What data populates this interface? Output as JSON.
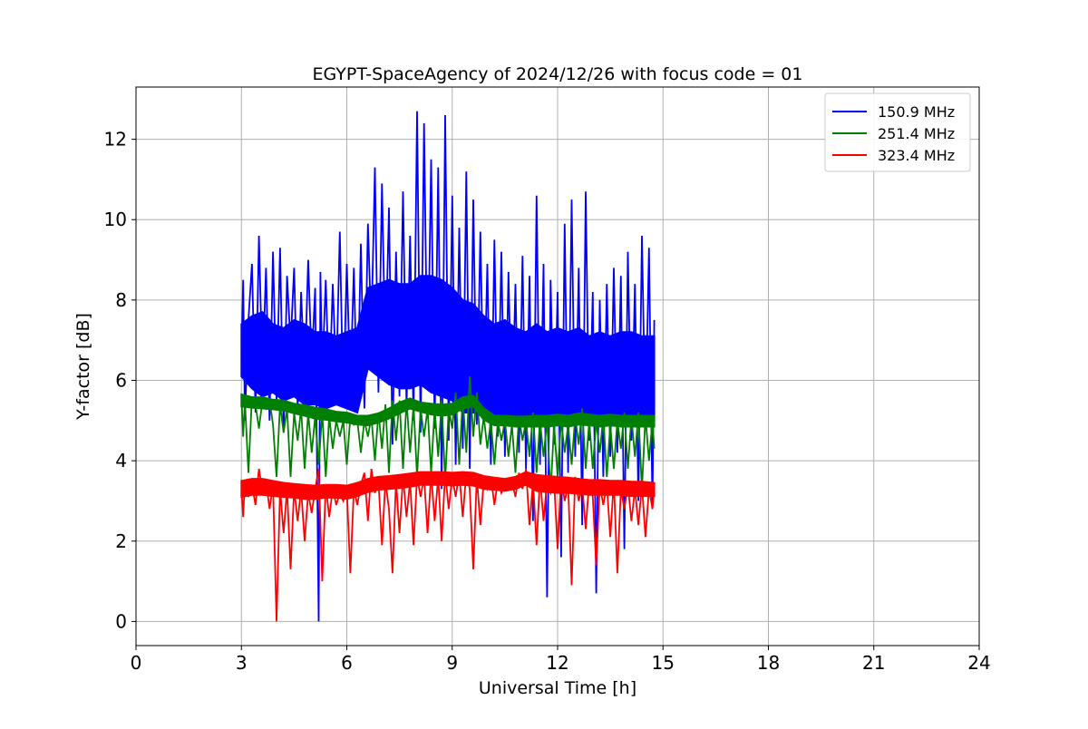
{
  "chart_data": {
    "type": "line",
    "title": "EGYPT-SpaceAgency of 2024/12/26 with focus code = 01",
    "xlabel": "Universal Time [h]",
    "ylabel": "Y-factor [dB]",
    "xlim": [
      0,
      24
    ],
    "ylim": [
      -0.6,
      13.3
    ],
    "xticks": [
      0,
      3,
      6,
      9,
      12,
      15,
      18,
      21,
      24
    ],
    "yticks": [
      0,
      2,
      4,
      6,
      8,
      10,
      12
    ],
    "grid": true,
    "legend_position": "top-right",
    "series": [
      {
        "name": "150.9 MHz",
        "color": "#0000ff",
        "x": [
          3.0,
          3.05,
          3.1,
          3.2,
          3.3,
          3.4,
          3.5,
          3.6,
          3.7,
          3.8,
          3.9,
          4.0,
          4.1,
          4.2,
          4.3,
          4.4,
          4.5,
          4.6,
          4.7,
          4.8,
          4.9,
          5.0,
          5.1,
          5.2,
          5.25,
          5.3,
          5.4,
          5.5,
          5.6,
          5.7,
          5.8,
          5.9,
          6.0,
          6.1,
          6.2,
          6.3,
          6.4,
          6.5,
          6.6,
          6.7,
          6.8,
          6.9,
          7.0,
          7.1,
          7.2,
          7.3,
          7.4,
          7.5,
          7.6,
          7.7,
          7.8,
          7.9,
          8.0,
          8.1,
          8.2,
          8.3,
          8.4,
          8.5,
          8.6,
          8.7,
          8.8,
          8.9,
          9.0,
          9.1,
          9.2,
          9.3,
          9.4,
          9.5,
          9.6,
          9.7,
          9.8,
          9.9,
          10.0,
          10.1,
          10.2,
          10.3,
          10.4,
          10.5,
          10.6,
          10.7,
          10.8,
          10.9,
          11.0,
          11.1,
          11.2,
          11.3,
          11.4,
          11.5,
          11.6,
          11.7,
          11.8,
          11.9,
          12.0,
          12.1,
          12.2,
          12.3,
          12.4,
          12.5,
          12.6,
          12.7,
          12.8,
          12.9,
          13.0,
          13.1,
          13.2,
          13.3,
          13.4,
          13.5,
          13.6,
          13.7,
          13.8,
          13.9,
          14.0,
          14.1,
          14.2,
          14.3,
          14.4,
          14.5,
          14.6,
          14.7,
          14.75
        ],
        "y": [
          6.6,
          8.5,
          5.0,
          7.5,
          8.9,
          5.2,
          9.6,
          6.1,
          8.8,
          5.0,
          9.2,
          5.5,
          9.3,
          4.7,
          8.6,
          6.9,
          8.8,
          5.3,
          8.2,
          6.0,
          9.0,
          6.4,
          8.3,
          0.0,
          8.7,
          6.1,
          8.5,
          5.6,
          8.4,
          6.0,
          9.7,
          5.4,
          8.9,
          5.8,
          8.8,
          5.2,
          9.4,
          5.3,
          9.9,
          7.2,
          11.3,
          5.7,
          10.9,
          6.5,
          10.3,
          4.4,
          9.2,
          5.6,
          10.7,
          5.3,
          9.6,
          5.0,
          12.7,
          4.7,
          12.4,
          5.8,
          11.5,
          4.8,
          11.3,
          3.3,
          12.6,
          4.5,
          10.6,
          3.9,
          9.8,
          4.3,
          11.2,
          3.8,
          10.5,
          4.9,
          9.7,
          5.1,
          8.9,
          3.9,
          9.5,
          4.6,
          9.2,
          4.1,
          8.7,
          4.8,
          8.4,
          4.2,
          9.1,
          3.8,
          8.6,
          2.5,
          10.6,
          3.9,
          8.9,
          0.6,
          8.5,
          4.4,
          8.2,
          1.6,
          9.9,
          3.7,
          10.5,
          4.1,
          8.8,
          2.4,
          10.7,
          4.5,
          8.2,
          0.7,
          8.0,
          3.6,
          8.4,
          4.1,
          8.8,
          4.2,
          8.6,
          1.8,
          9.2,
          4.5,
          8.4,
          3.0,
          9.6,
          4.8,
          9.3,
          2.8,
          7.5
        ],
        "envelope": {
          "x": [
            3.0,
            3.3,
            3.6,
            3.9,
            4.2,
            4.5,
            4.8,
            5.1,
            5.4,
            5.7,
            6.0,
            6.3,
            6.6,
            6.9,
            7.2,
            7.5,
            7.8,
            8.1,
            8.4,
            8.7,
            9.0,
            9.3,
            9.6,
            9.9,
            10.2,
            10.5,
            10.8,
            11.1,
            11.4,
            11.7,
            12.0,
            12.3,
            12.6,
            12.9,
            13.2,
            13.5,
            13.8,
            14.1,
            14.4,
            14.75
          ],
          "upper": [
            7.4,
            7.6,
            7.7,
            7.4,
            7.3,
            7.5,
            7.4,
            7.2,
            7.2,
            7.1,
            7.2,
            7.3,
            8.3,
            8.4,
            8.5,
            8.4,
            8.4,
            8.6,
            8.6,
            8.5,
            8.3,
            8.0,
            7.9,
            7.6,
            7.4,
            7.5,
            7.3,
            7.2,
            7.4,
            7.2,
            7.3,
            7.2,
            7.3,
            7.1,
            7.2,
            7.1,
            7.2,
            7.2,
            7.1,
            7.1
          ],
          "lower": [
            6.1,
            5.8,
            5.6,
            5.7,
            5.5,
            5.6,
            5.4,
            5.4,
            5.3,
            5.4,
            5.3,
            5.2,
            6.3,
            6.1,
            5.9,
            5.8,
            5.8,
            5.9,
            5.7,
            5.6,
            5.5,
            5.2,
            5.2,
            5.1,
            5.1,
            5.1,
            5.1,
            5.0,
            5.1,
            5.0,
            5.1,
            5.1,
            5.0,
            5.0,
            5.1,
            5.1,
            5.0,
            5.1,
            5.0,
            5.1
          ]
        }
      },
      {
        "name": "251.4 MHz",
        "color": "#008000",
        "x": [
          3.0,
          3.05,
          3.1,
          3.2,
          3.3,
          3.4,
          3.5,
          3.6,
          3.7,
          3.8,
          3.9,
          4.0,
          4.1,
          4.2,
          4.3,
          4.4,
          4.5,
          4.6,
          4.7,
          4.8,
          4.9,
          5.0,
          5.1,
          5.2,
          5.3,
          5.4,
          5.5,
          5.6,
          5.7,
          5.8,
          5.9,
          6.0,
          6.1,
          6.2,
          6.3,
          6.4,
          6.5,
          6.6,
          6.7,
          6.8,
          6.9,
          7.0,
          7.1,
          7.2,
          7.3,
          7.4,
          7.5,
          7.6,
          7.7,
          7.8,
          7.9,
          8.0,
          8.1,
          8.2,
          8.3,
          8.4,
          8.5,
          8.6,
          8.7,
          8.8,
          8.9,
          9.0,
          9.1,
          9.2,
          9.3,
          9.4,
          9.5,
          9.6,
          9.7,
          9.8,
          9.9,
          10.0,
          10.1,
          10.2,
          10.3,
          10.4,
          10.5,
          10.6,
          10.7,
          10.8,
          10.9,
          11.0,
          11.1,
          11.2,
          11.3,
          11.4,
          11.5,
          11.6,
          11.7,
          11.8,
          11.9,
          12.0,
          12.1,
          12.2,
          12.3,
          12.4,
          12.5,
          12.6,
          12.7,
          12.8,
          12.9,
          13.0,
          13.1,
          13.2,
          13.3,
          13.4,
          13.5,
          13.6,
          13.7,
          13.8,
          13.9,
          14.0,
          14.1,
          14.2,
          14.3,
          14.4,
          14.5,
          14.6,
          14.7,
          14.75
        ],
        "y": [
          5.6,
          4.6,
          5.5,
          3.7,
          5.6,
          5.4,
          4.8,
          5.5,
          5.3,
          5.5,
          4.9,
          3.6,
          5.4,
          4.7,
          5.3,
          3.6,
          5.2,
          4.5,
          5.3,
          3.8,
          5.2,
          4.2,
          5.1,
          3.9,
          5.2,
          3.6,
          5.1,
          4.3,
          5.0,
          4.6,
          5.0,
          3.9,
          5.1,
          4.9,
          5.0,
          4.2,
          5.0,
          4.6,
          5.1,
          4.0,
          5.2,
          4.3,
          5.4,
          3.7,
          5.5,
          4.5,
          5.5,
          3.8,
          5.5,
          4.2,
          5.4,
          3.6,
          5.3,
          4.6,
          5.3,
          3.7,
          5.3,
          4.1,
          5.5,
          3.5,
          5.3,
          4.8,
          5.7,
          3.9,
          5.6,
          4.2,
          6.1,
          4.6,
          5.7,
          4.4,
          5.1,
          4.3,
          5.0,
          3.9,
          5.0,
          4.5,
          5.0,
          4.1,
          4.9,
          3.7,
          5.1,
          4.5,
          5.0,
          4.1,
          5.2,
          3.7,
          5.0,
          4.1,
          5.0,
          3.2,
          4.9,
          3.6,
          5.0,
          4.2,
          4.9,
          3.9,
          5.1,
          4.4,
          5.3,
          3.8,
          5.0,
          3.8,
          5.0,
          4.2,
          5.1,
          3.6,
          4.9,
          3.8,
          5.0,
          4.3,
          5.2,
          3.8,
          5.1,
          4.1,
          5.2,
          3.3,
          5.1,
          4.0,
          5.0,
          4.3
        ],
        "envelope": {
          "x": [
            3.0,
            3.3,
            3.6,
            3.9,
            4.2,
            4.5,
            4.8,
            5.1,
            5.4,
            5.7,
            6.0,
            6.3,
            6.6,
            6.9,
            7.2,
            7.5,
            7.8,
            8.1,
            8.4,
            8.7,
            9.0,
            9.3,
            9.6,
            9.9,
            10.2,
            10.5,
            10.8,
            11.1,
            11.4,
            11.7,
            12.0,
            12.3,
            12.6,
            12.9,
            13.2,
            13.5,
            13.8,
            14.1,
            14.4,
            14.75
          ],
          "upper": [
            5.65,
            5.58,
            5.58,
            5.52,
            5.5,
            5.42,
            5.38,
            5.32,
            5.28,
            5.22,
            5.2,
            5.12,
            5.12,
            5.18,
            5.3,
            5.45,
            5.55,
            5.45,
            5.42,
            5.4,
            5.42,
            5.58,
            5.62,
            5.3,
            5.12,
            5.12,
            5.1,
            5.1,
            5.12,
            5.12,
            5.15,
            5.12,
            5.18,
            5.15,
            5.12,
            5.15,
            5.12,
            5.12,
            5.12,
            5.12
          ],
          "lower": [
            5.35,
            5.32,
            5.3,
            5.28,
            5.25,
            5.18,
            5.12,
            5.05,
            5.02,
            4.98,
            4.95,
            4.9,
            4.88,
            4.95,
            5.05,
            5.18,
            5.3,
            5.22,
            5.15,
            5.12,
            5.15,
            5.3,
            5.35,
            5.02,
            4.88,
            4.88,
            4.85,
            4.85,
            4.85,
            4.85,
            4.88,
            4.85,
            4.9,
            4.88,
            4.85,
            4.88,
            4.85,
            4.85,
            4.85,
            4.85
          ]
        }
      },
      {
        "name": "323.4 MHz",
        "color": "#ff0000",
        "x": [
          3.0,
          3.05,
          3.1,
          3.2,
          3.3,
          3.4,
          3.5,
          3.6,
          3.7,
          3.8,
          3.9,
          4.0,
          4.1,
          4.2,
          4.3,
          4.4,
          4.5,
          4.6,
          4.7,
          4.8,
          4.9,
          5.0,
          5.1,
          5.2,
          5.3,
          5.4,
          5.5,
          5.6,
          5.7,
          5.8,
          5.9,
          6.0,
          6.1,
          6.2,
          6.3,
          6.4,
          6.5,
          6.6,
          6.7,
          6.8,
          6.9,
          7.0,
          7.1,
          7.2,
          7.3,
          7.4,
          7.5,
          7.6,
          7.7,
          7.8,
          7.9,
          8.0,
          8.1,
          8.2,
          8.3,
          8.4,
          8.5,
          8.6,
          8.7,
          8.8,
          8.9,
          9.0,
          9.1,
          9.2,
          9.3,
          9.4,
          9.5,
          9.6,
          9.7,
          9.8,
          9.9,
          10.0,
          10.1,
          10.2,
          10.3,
          10.4,
          10.5,
          10.6,
          10.7,
          10.8,
          10.9,
          11.0,
          11.1,
          11.2,
          11.3,
          11.4,
          11.5,
          11.6,
          11.7,
          11.8,
          11.9,
          12.0,
          12.1,
          12.2,
          12.3,
          12.4,
          12.5,
          12.6,
          12.7,
          12.8,
          12.9,
          13.0,
          13.1,
          13.2,
          13.3,
          13.4,
          13.5,
          13.6,
          13.7,
          13.8,
          13.9,
          14.0,
          14.1,
          14.2,
          14.3,
          14.4,
          14.5,
          14.6,
          14.7,
          14.75
        ],
        "y": [
          3.3,
          2.6,
          3.5,
          3.1,
          3.4,
          2.9,
          3.8,
          3.2,
          3.5,
          2.8,
          3.4,
          0.0,
          3.3,
          2.2,
          3.3,
          1.3,
          3.3,
          2.5,
          3.3,
          2.0,
          3.2,
          2.7,
          3.3,
          3.8,
          1.0,
          3.4,
          2.6,
          3.3,
          2.9,
          3.2,
          3.0,
          3.3,
          1.2,
          3.3,
          2.9,
          3.4,
          3.7,
          2.5,
          3.8,
          3.2,
          3.5,
          1.9,
          3.5,
          2.8,
          1.2,
          3.5,
          2.2,
          3.6,
          2.6,
          3.5,
          1.9,
          3.6,
          3.1,
          3.6,
          2.2,
          3.7,
          2.5,
          3.6,
          2.0,
          3.7,
          2.8,
          3.6,
          3.1,
          3.7,
          2.6,
          3.7,
          3.3,
          1.3,
          3.6,
          2.4,
          3.5,
          3.3,
          3.6,
          2.9,
          3.5,
          3.2,
          3.4,
          3.3,
          3.5,
          3.1,
          3.7,
          3.3,
          3.8,
          2.4,
          3.5,
          1.9,
          3.6,
          2.5,
          3.5,
          3.2,
          3.5,
          1.8,
          3.6,
          3.0,
          3.4,
          0.9,
          3.6,
          3.0,
          3.4,
          2.3,
          3.5,
          3.1,
          1.4,
          3.4,
          2.9,
          3.4,
          2.1,
          3.5,
          1.2,
          3.3,
          2.8,
          3.4,
          2.5,
          3.3,
          2.4,
          3.4,
          2.1,
          3.3,
          2.8,
          3.3
        ],
        "envelope": {
          "x": [
            3.0,
            3.3,
            3.6,
            3.9,
            4.2,
            4.5,
            4.8,
            5.1,
            5.4,
            5.7,
            6.0,
            6.3,
            6.6,
            6.9,
            7.2,
            7.5,
            7.8,
            8.1,
            8.4,
            8.7,
            9.0,
            9.3,
            9.6,
            9.9,
            10.2,
            10.5,
            10.8,
            11.1,
            11.4,
            11.7,
            12.0,
            12.3,
            12.6,
            12.9,
            13.2,
            13.5,
            13.8,
            14.1,
            14.4,
            14.75
          ],
          "upper": [
            3.5,
            3.55,
            3.55,
            3.5,
            3.45,
            3.42,
            3.4,
            3.38,
            3.4,
            3.4,
            3.38,
            3.45,
            3.55,
            3.6,
            3.62,
            3.65,
            3.68,
            3.72,
            3.72,
            3.72,
            3.7,
            3.72,
            3.7,
            3.62,
            3.58,
            3.55,
            3.6,
            3.72,
            3.65,
            3.62,
            3.6,
            3.58,
            3.55,
            3.52,
            3.52,
            3.5,
            3.5,
            3.48,
            3.48,
            3.45
          ],
          "lower": [
            3.1,
            3.15,
            3.15,
            3.12,
            3.1,
            3.08,
            3.05,
            3.05,
            3.08,
            3.08,
            3.05,
            3.12,
            3.22,
            3.28,
            3.3,
            3.32,
            3.35,
            3.4,
            3.4,
            3.4,
            3.38,
            3.4,
            3.38,
            3.3,
            3.28,
            3.25,
            3.3,
            3.4,
            3.25,
            3.22,
            3.2,
            3.2,
            3.18,
            3.15,
            3.15,
            3.15,
            3.15,
            3.12,
            3.12,
            3.12
          ]
        }
      }
    ]
  }
}
